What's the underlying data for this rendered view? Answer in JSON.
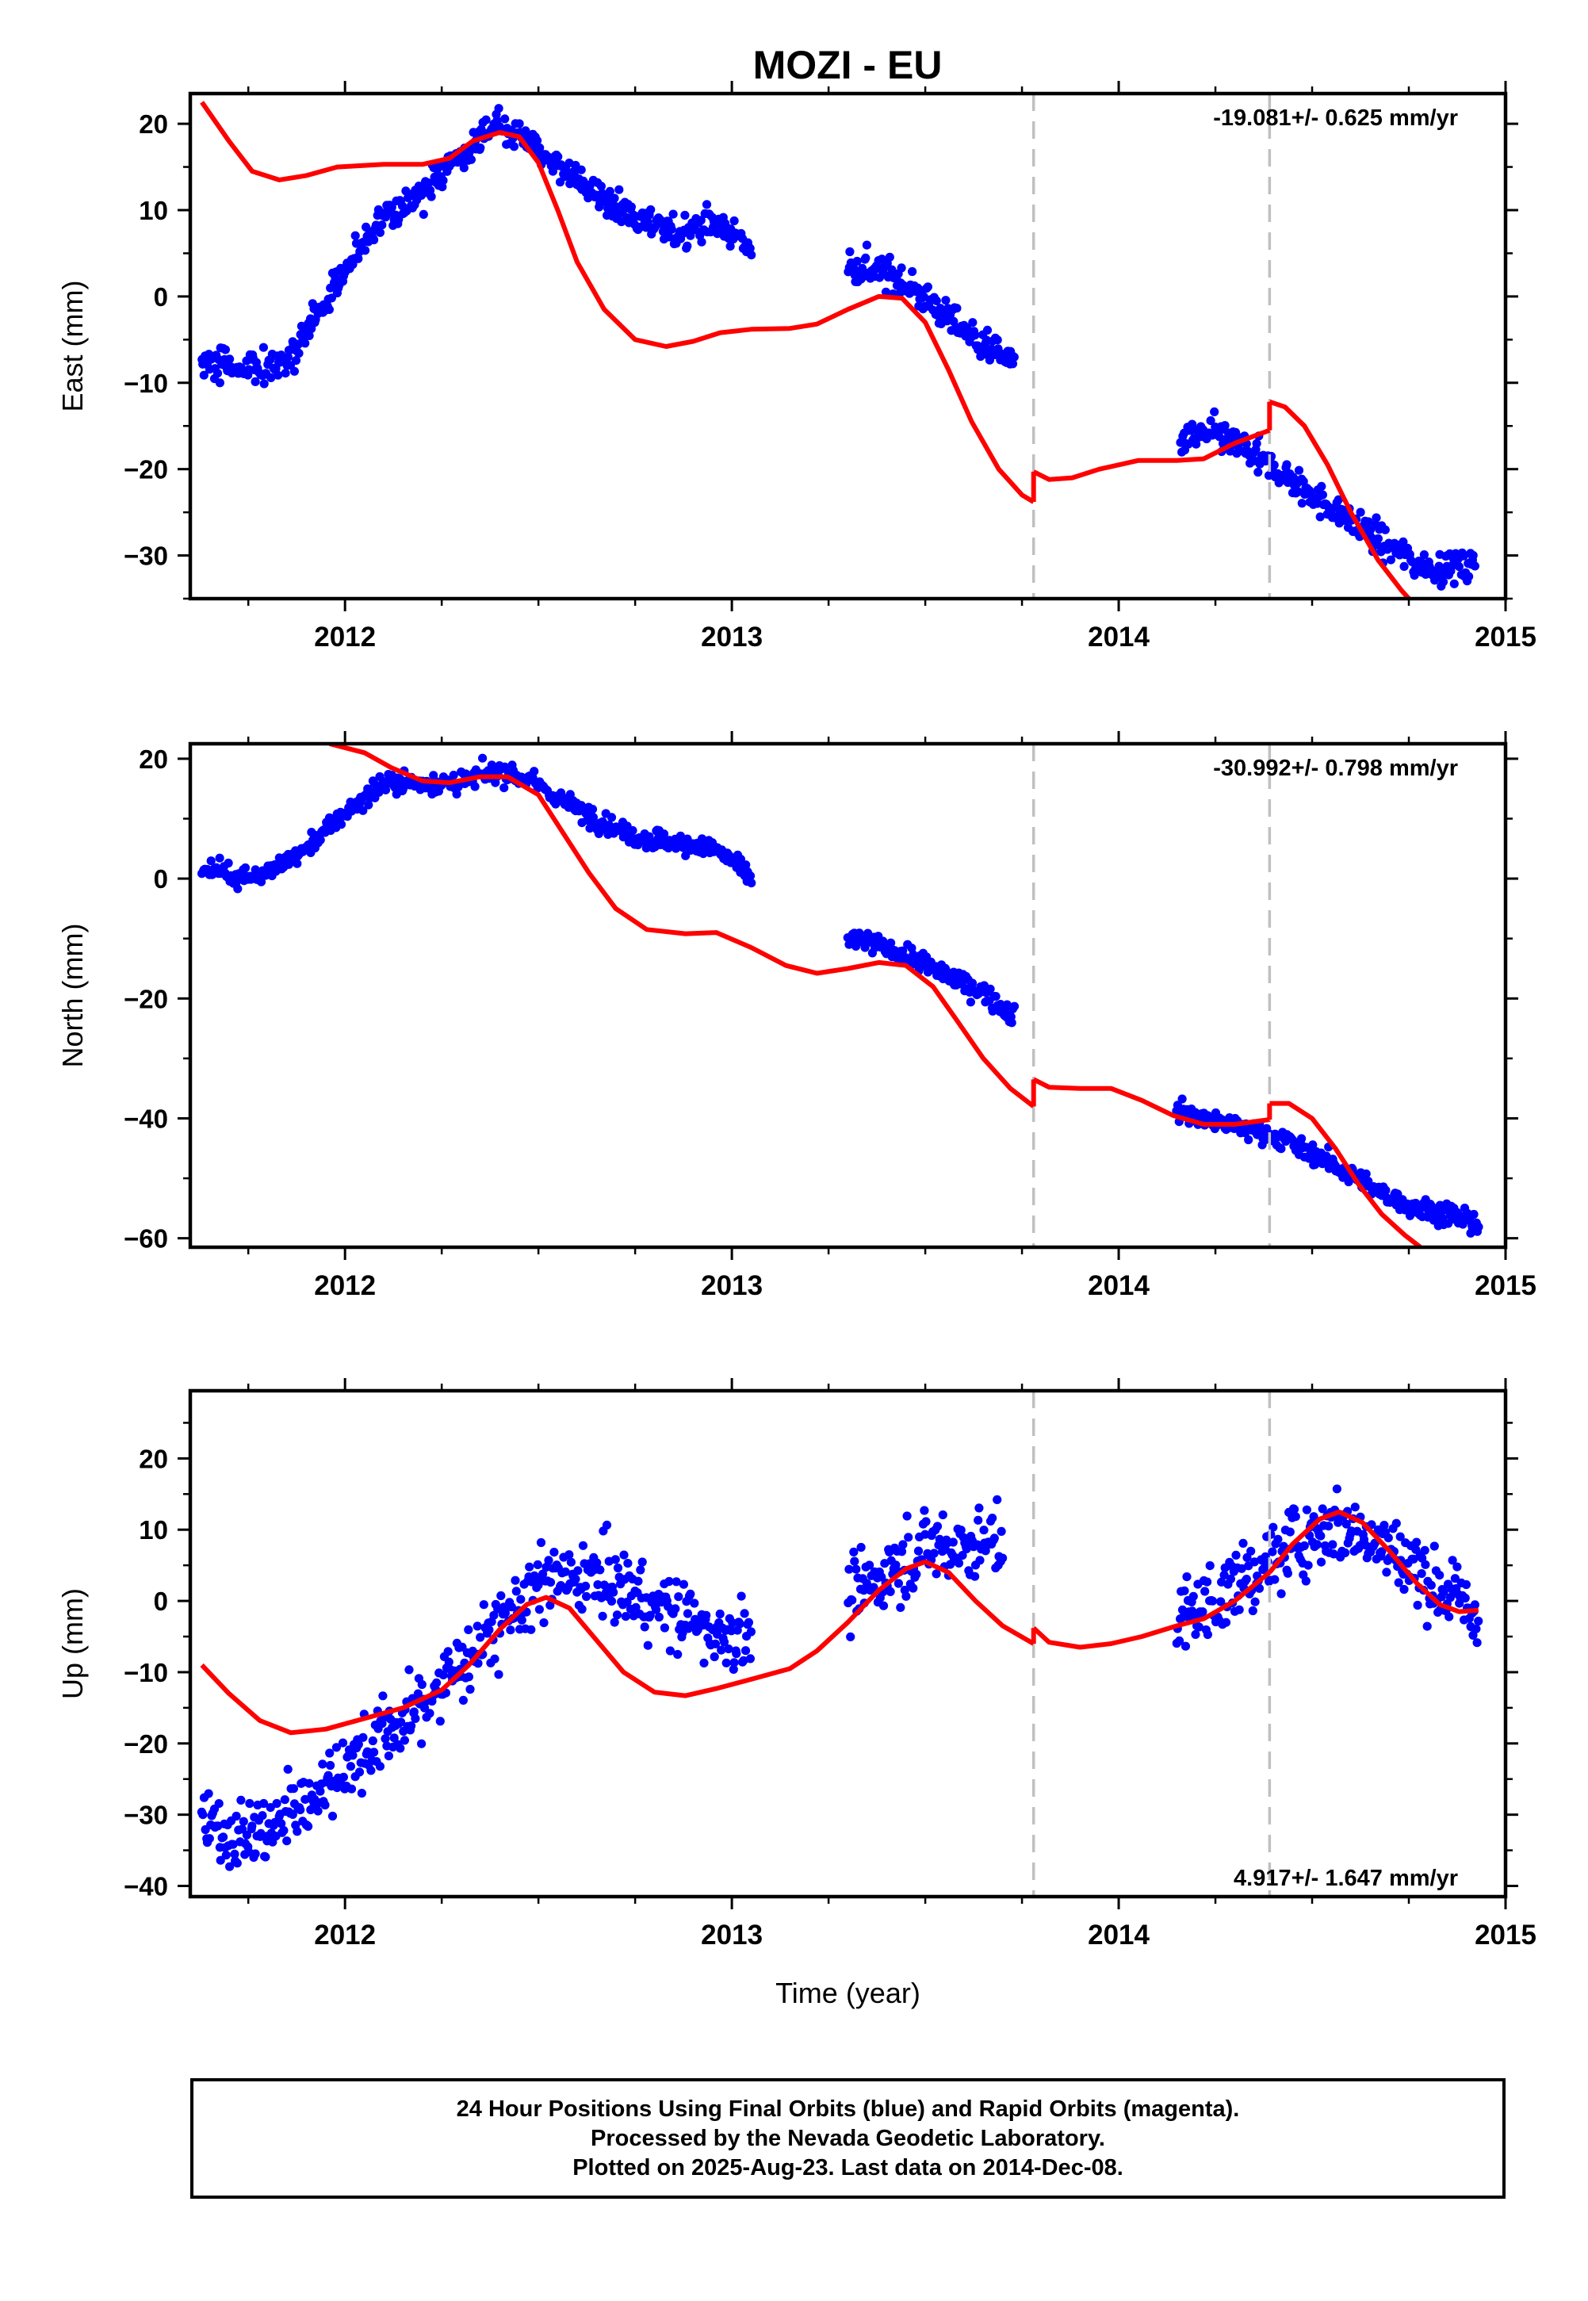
{
  "title": "MOZI - EU",
  "chart_data": [
    {
      "type": "scatter",
      "ylabel": "East (mm)",
      "xlabel": "",
      "xlim": [
        2011.6,
        2015.0
      ],
      "ylim": [
        -35,
        23.5
      ],
      "x_ticks": [
        2012,
        2013,
        2014,
        2015
      ],
      "y_ticks": [
        -30,
        -20,
        -10,
        0,
        10,
        20
      ],
      "rate_label": "-19.081+/- 0.625 mm/yr",
      "rate_position": "top-right",
      "breaks": [
        2013.78,
        2014.39
      ],
      "colors": {
        "points": "#0000ff",
        "model": "#ff0000",
        "breaks": "#c0c0c0"
      },
      "observed_trend": [
        [
          2011.63,
          -7.5
        ],
        [
          2011.72,
          -8
        ],
        [
          2011.8,
          -8.5
        ],
        [
          2011.87,
          -6
        ],
        [
          2011.95,
          -1
        ],
        [
          2012.02,
          5
        ],
        [
          2012.1,
          9
        ],
        [
          2012.2,
          12
        ],
        [
          2012.3,
          16
        ],
        [
          2012.38,
          19.5
        ],
        [
          2012.45,
          19
        ],
        [
          2012.55,
          15
        ],
        [
          2012.65,
          12
        ],
        [
          2012.75,
          9
        ],
        [
          2012.85,
          7.5
        ],
        [
          2012.95,
          8.5
        ],
        [
          2013.05,
          6
        ],
        [
          2013.3,
          3.5
        ],
        [
          2013.38,
          3
        ],
        [
          2013.45,
          1.5
        ],
        [
          2013.55,
          -2
        ],
        [
          2013.65,
          -5.5
        ],
        [
          2013.73,
          -8
        ],
        [
          2014.16,
          -16.5
        ],
        [
          2014.25,
          -16
        ],
        [
          2014.32,
          -17.5
        ],
        [
          2014.4,
          -20
        ],
        [
          2014.5,
          -23
        ],
        [
          2014.6,
          -26
        ],
        [
          2014.7,
          -29
        ],
        [
          2014.8,
          -31.5
        ],
        [
          2014.92,
          -31
        ]
      ],
      "observed_scatter": 1.3,
      "model": {
        "segments": [
          [
            [
              2011.63,
              22.5
            ],
            [
              2011.7,
              18
            ],
            [
              2011.76,
              14.5
            ],
            [
              2011.83,
              13.5
            ],
            [
              2011.9,
              14
            ],
            [
              2011.98,
              15
            ],
            [
              2012.1,
              15.3
            ],
            [
              2012.2,
              15.3
            ],
            [
              2012.27,
              16
            ],
            [
              2012.33,
              18
            ],
            [
              2012.4,
              19
            ],
            [
              2012.45,
              18.5
            ],
            [
              2012.5,
              15.5
            ],
            [
              2012.55,
              10
            ],
            [
              2012.6,
              4
            ],
            [
              2012.67,
              -1.5
            ],
            [
              2012.75,
              -5
            ],
            [
              2012.83,
              -5.8
            ],
            [
              2012.9,
              -5.2
            ],
            [
              2012.97,
              -4.2
            ],
            [
              2013.05,
              -3.8
            ],
            [
              2013.15,
              -3.7
            ],
            [
              2013.22,
              -3.2
            ],
            [
              2013.3,
              -1.5
            ],
            [
              2013.38,
              0
            ],
            [
              2013.44,
              -0.2
            ],
            [
              2013.5,
              -3
            ],
            [
              2013.56,
              -8.5
            ],
            [
              2013.62,
              -14.5
            ],
            [
              2013.69,
              -20
            ],
            [
              2013.75,
              -23
            ],
            [
              2013.78,
              -23.8
            ]
          ],
          [
            [
              2013.78,
              -20.3
            ],
            [
              2013.82,
              -21.2
            ],
            [
              2013.88,
              -21
            ],
            [
              2013.95,
              -20
            ],
            [
              2014.05,
              -19
            ],
            [
              2014.15,
              -19
            ],
            [
              2014.22,
              -18.8
            ],
            [
              2014.3,
              -17
            ],
            [
              2014.39,
              -15.5
            ]
          ],
          [
            [
              2014.39,
              -12.2
            ],
            [
              2014.43,
              -12.8
            ],
            [
              2014.48,
              -15
            ],
            [
              2014.54,
              -19.5
            ],
            [
              2014.6,
              -25
            ],
            [
              2014.67,
              -30.5
            ],
            [
              2014.73,
              -34
            ],
            [
              2014.76,
              -35.5
            ]
          ]
        ]
      }
    },
    {
      "type": "scatter",
      "ylabel": "North (mm)",
      "xlabel": "",
      "xlim": [
        2011.6,
        2015.0
      ],
      "ylim": [
        -61.5,
        22.5
      ],
      "x_ticks": [
        2012,
        2013,
        2014,
        2015
      ],
      "y_ticks": [
        -60,
        -40,
        -20,
        0,
        20
      ],
      "rate_label": "-30.992+/- 0.798 mm/yr",
      "rate_position": "top-right",
      "breaks": [
        2013.78,
        2014.39
      ],
      "colors": {
        "points": "#0000ff",
        "model": "#ff0000",
        "breaks": "#c0c0c0"
      },
      "observed_trend": [
        [
          2011.63,
          2
        ],
        [
          2011.72,
          0.5
        ],
        [
          2011.8,
          1
        ],
        [
          2011.88,
          4
        ],
        [
          2011.95,
          8
        ],
        [
          2012.02,
          12
        ],
        [
          2012.1,
          16
        ],
        [
          2012.2,
          16
        ],
        [
          2012.3,
          16
        ],
        [
          2012.4,
          18
        ],
        [
          2012.48,
          16.5
        ],
        [
          2012.56,
          13
        ],
        [
          2012.65,
          10
        ],
        [
          2012.75,
          7
        ],
        [
          2012.85,
          6
        ],
        [
          2012.95,
          5
        ],
        [
          2013.0,
          3
        ],
        [
          2013.05,
          0
        ],
        [
          2013.3,
          -10
        ],
        [
          2013.38,
          -11
        ],
        [
          2013.46,
          -13
        ],
        [
          2013.55,
          -16
        ],
        [
          2013.65,
          -19
        ],
        [
          2013.73,
          -23
        ],
        [
          2014.15,
          -38.5
        ],
        [
          2014.25,
          -40.5
        ],
        [
          2014.35,
          -42
        ],
        [
          2014.45,
          -44
        ],
        [
          2014.55,
          -47.5
        ],
        [
          2014.65,
          -51.5
        ],
        [
          2014.75,
          -54.5
        ],
        [
          2014.85,
          -56
        ],
        [
          2014.93,
          -57.5
        ]
      ],
      "observed_scatter": 1.2,
      "model": {
        "segments": [
          [
            [
              2011.96,
              22.5
            ],
            [
              2012.05,
              21
            ],
            [
              2012.12,
              18.5
            ],
            [
              2012.2,
              16.3
            ],
            [
              2012.27,
              16
            ],
            [
              2012.35,
              17
            ],
            [
              2012.42,
              17
            ],
            [
              2012.5,
              14
            ],
            [
              2012.56,
              8
            ],
            [
              2012.63,
              1
            ],
            [
              2012.7,
              -5
            ],
            [
              2012.78,
              -8.5
            ],
            [
              2012.88,
              -9.2
            ],
            [
              2012.96,
              -9
            ],
            [
              2013.05,
              -11.5
            ],
            [
              2013.14,
              -14.5
            ],
            [
              2013.22,
              -15.8
            ],
            [
              2013.3,
              -15
            ],
            [
              2013.38,
              -14
            ],
            [
              2013.45,
              -14.5
            ],
            [
              2013.52,
              -18
            ],
            [
              2013.58,
              -23.5
            ],
            [
              2013.65,
              -30
            ],
            [
              2013.72,
              -35
            ],
            [
              2013.78,
              -38
            ]
          ],
          [
            [
              2013.78,
              -33.5
            ],
            [
              2013.82,
              -34.8
            ],
            [
              2013.9,
              -35
            ],
            [
              2013.98,
              -35
            ],
            [
              2014.06,
              -37
            ],
            [
              2014.14,
              -39.5
            ],
            [
              2014.22,
              -41
            ],
            [
              2014.3,
              -41
            ],
            [
              2014.39,
              -40.2
            ]
          ],
          [
            [
              2014.39,
              -37.5
            ],
            [
              2014.44,
              -37.5
            ],
            [
              2014.5,
              -40
            ],
            [
              2014.56,
              -45
            ],
            [
              2014.62,
              -51
            ],
            [
              2014.68,
              -56
            ],
            [
              2014.74,
              -59.5
            ],
            [
              2014.78,
              -61.5
            ]
          ]
        ]
      }
    },
    {
      "type": "scatter",
      "ylabel": "Up (mm)",
      "xlabel": "Time (year)",
      "xlim": [
        2011.6,
        2015.0
      ],
      "ylim": [
        -41.5,
        29.5
      ],
      "x_ticks": [
        2012,
        2013,
        2014,
        2015
      ],
      "y_ticks": [
        -40,
        -30,
        -20,
        -10,
        0,
        10,
        20
      ],
      "rate_label": "4.917+/- 1.647 mm/yr",
      "rate_position": "bottom-right",
      "breaks": [
        2013.78,
        2014.39
      ],
      "colors": {
        "points": "#0000ff",
        "model": "#ff0000",
        "breaks": "#c0c0c0"
      },
      "observed_trend": [
        [
          2011.63,
          -32
        ],
        [
          2011.72,
          -33
        ],
        [
          2011.8,
          -32
        ],
        [
          2011.88,
          -29
        ],
        [
          2011.95,
          -26
        ],
        [
          2012.05,
          -21
        ],
        [
          2012.15,
          -17
        ],
        [
          2012.25,
          -12
        ],
        [
          2012.35,
          -6
        ],
        [
          2012.45,
          0
        ],
        [
          2012.55,
          3
        ],
        [
          2012.65,
          3
        ],
        [
          2012.75,
          1
        ],
        [
          2012.85,
          -2
        ],
        [
          2012.95,
          -4
        ],
        [
          2013.05,
          -5
        ],
        [
          2013.3,
          0
        ],
        [
          2013.4,
          4
        ],
        [
          2013.5,
          7
        ],
        [
          2013.6,
          8
        ],
        [
          2013.7,
          8
        ],
        [
          2014.15,
          -3
        ],
        [
          2014.25,
          0
        ],
        [
          2014.35,
          4
        ],
        [
          2014.45,
          8
        ],
        [
          2014.55,
          11
        ],
        [
          2014.65,
          9
        ],
        [
          2014.75,
          5
        ],
        [
          2014.85,
          1
        ],
        [
          2014.93,
          -2
        ]
      ],
      "observed_scatter": 3.6,
      "model": {
        "segments": [
          [
            [
              2011.63,
              -9
            ],
            [
              2011.7,
              -13
            ],
            [
              2011.78,
              -16.8
            ],
            [
              2011.86,
              -18.5
            ],
            [
              2011.95,
              -18
            ],
            [
              2012.05,
              -16.5
            ],
            [
              2012.15,
              -15
            ],
            [
              2012.25,
              -12.5
            ],
            [
              2012.32,
              -9
            ],
            [
              2012.4,
              -4
            ],
            [
              2012.47,
              -0.5
            ],
            [
              2012.52,
              0.5
            ],
            [
              2012.58,
              -1
            ],
            [
              2012.65,
              -5.5
            ],
            [
              2012.72,
              -10
            ],
            [
              2012.8,
              -12.8
            ],
            [
              2012.88,
              -13.3
            ],
            [
              2012.96,
              -12.3
            ],
            [
              2013.05,
              -11
            ],
            [
              2013.15,
              -9.5
            ],
            [
              2013.22,
              -7
            ],
            [
              2013.3,
              -3
            ],
            [
              2013.38,
              1.5
            ],
            [
              2013.45,
              4.5
            ],
            [
              2013.5,
              5.5
            ],
            [
              2013.56,
              4
            ],
            [
              2013.63,
              0
            ],
            [
              2013.7,
              -3.5
            ],
            [
              2013.78,
              -6
            ]
          ],
          [
            [
              2013.78,
              -3.8
            ],
            [
              2013.82,
              -5.8
            ],
            [
              2013.9,
              -6.5
            ],
            [
              2013.98,
              -6
            ],
            [
              2014.06,
              -5
            ],
            [
              2014.15,
              -3.5
            ],
            [
              2014.22,
              -2.5
            ],
            [
              2014.3,
              0
            ],
            [
              2014.39,
              4
            ]
          ],
          [
            [
              2014.39,
              4
            ],
            [
              2014.45,
              8
            ],
            [
              2014.52,
              11.5
            ],
            [
              2014.57,
              12.5
            ],
            [
              2014.63,
              11
            ],
            [
              2014.7,
              7
            ],
            [
              2014.77,
              2.5
            ],
            [
              2014.83,
              -0.5
            ],
            [
              2014.88,
              -1.5
            ],
            [
              2014.93,
              -1.3
            ]
          ]
        ]
      }
    }
  ],
  "footer": {
    "line1": "24 Hour Positions Using Final Orbits (blue) and Rapid Orbits (magenta).",
    "line2": "Processed by the Nevada Geodetic Laboratory.",
    "line3": "Plotted on 2025-Aug-23. Last data on 2014-Dec-08."
  }
}
